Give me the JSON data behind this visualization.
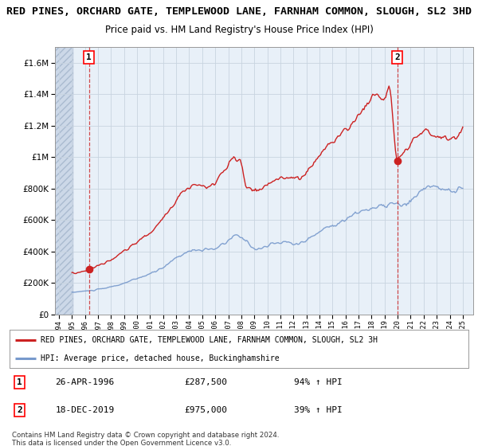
{
  "title": "RED PINES, ORCHARD GATE, TEMPLEWOOD LANE, FARNHAM COMMON, SLOUGH, SL2 3HD",
  "subtitle": "Price paid vs. HM Land Registry's House Price Index (HPI)",
  "title_fontsize": 9.5,
  "subtitle_fontsize": 8.5,
  "ylim": [
    0,
    1700000
  ],
  "yticks": [
    0,
    200000,
    400000,
    600000,
    800000,
    1000000,
    1200000,
    1400000,
    1600000
  ],
  "ytick_labels": [
    "£0",
    "£200K",
    "£400K",
    "£600K",
    "£800K",
    "£1M",
    "£1.2M",
    "£1.4M",
    "£1.6M"
  ],
  "xlim_start": 1993.7,
  "xlim_end": 2025.8,
  "hpi_color": "#7799cc",
  "price_color": "#cc2222",
  "background_color": "#ffffff",
  "plot_bg_color": "#e8f0f8",
  "grid_color": "#c8d4e0",
  "marker1_x": 1996.3,
  "marker1_y": 287500,
  "marker2_x": 2019.97,
  "marker2_y": 975000,
  "hatch_end": 1995.0,
  "sale1_label": "1",
  "sale1_date": "26-APR-1996",
  "sale1_price": "£287,500",
  "sale1_hpi": "94% ↑ HPI",
  "sale2_label": "2",
  "sale2_date": "18-DEC-2019",
  "sale2_price": "£975,000",
  "sale2_hpi": "39% ↑ HPI",
  "legend_line1": "RED PINES, ORCHARD GATE, TEMPLEWOOD LANE, FARNHAM COMMON, SLOUGH, SL2 3H",
  "legend_line2": "HPI: Average price, detached house, Buckinghamshire",
  "footer": "Contains HM Land Registry data © Crown copyright and database right 2024.\nThis data is licensed under the Open Government Licence v3.0."
}
